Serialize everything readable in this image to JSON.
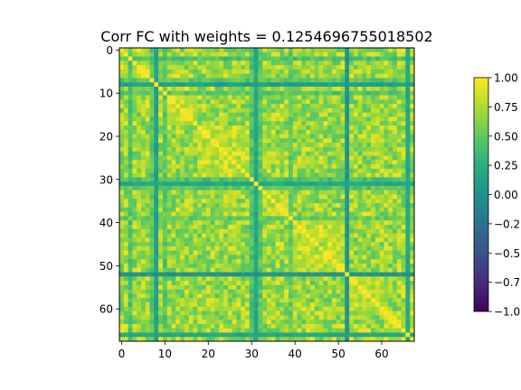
{
  "chart_data": {
    "type": "heatmap",
    "title": "Corr FC with weights = 0.1254696755018502",
    "xlabel": "",
    "ylabel": "",
    "size": 68,
    "xlim": [
      0,
      67
    ],
    "ylim": [
      67,
      0
    ],
    "x_ticks": [
      "0",
      "10",
      "20",
      "30",
      "40",
      "50",
      "60"
    ],
    "y_ticks": [
      "0",
      "10",
      "20",
      "30",
      "40",
      "50",
      "60"
    ],
    "colormap": "viridis",
    "colorbar": {
      "vmin": -1.0,
      "vmax": 1.0,
      "ticks": [
        "1.00",
        "0.75",
        "0.50",
        "0.25",
        "0.00",
        "−0.2",
        "−0.5",
        "−0.7",
        "−1.0"
      ]
    },
    "diagonal_value": 1.0,
    "low_correlation_nodes": [
      {
        "index": 8,
        "level": 0.05
      },
      {
        "index": 31,
        "level": 0.12
      },
      {
        "index": 52,
        "level": -0.05
      },
      {
        "index": 66,
        "level": 0.1
      }
    ],
    "medium_correlation_nodes": [
      {
        "index": 2,
        "level": 0.3
      },
      {
        "index": 7,
        "level": 0.35
      },
      {
        "index": 10,
        "level": 0.35
      },
      {
        "index": 30,
        "level": 0.3
      },
      {
        "index": 32,
        "level": 0.35
      },
      {
        "index": 39,
        "level": 0.4
      }
    ],
    "blocks": [
      [
        0,
        6
      ],
      [
        7,
        17
      ],
      [
        18,
        30
      ],
      [
        31,
        38
      ],
      [
        39,
        51
      ],
      [
        52,
        60
      ],
      [
        61,
        67
      ]
    ]
  }
}
